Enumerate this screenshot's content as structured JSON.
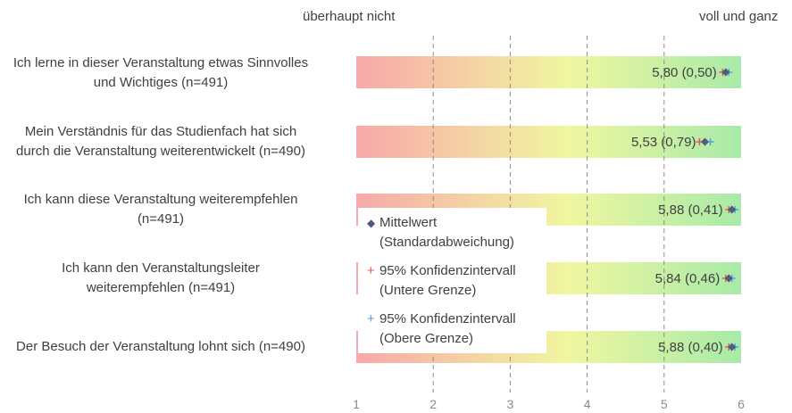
{
  "scale_labels": {
    "left": "überhaupt nicht",
    "right": "voll und ganz"
  },
  "legend": [
    {
      "marker": "diamond-marker",
      "line1": "Mittelwert",
      "line2": "(Standardabweichung)",
      "color": "#4f5b80"
    },
    {
      "marker": "plus-marker",
      "line1": "95% Konfidenzintervall",
      "line2": "(Untere Grenze)",
      "color": "#e05a5a"
    },
    {
      "marker": "plus-marker",
      "line1": "95% Konfidenzintervall",
      "line2": "(Obere Grenze)",
      "color": "#5a9fe0"
    }
  ],
  "chart_data": {
    "type": "scatter",
    "x_ticks": [
      "1",
      "2",
      "3",
      "4",
      "5",
      "6"
    ],
    "xlim": [
      1,
      6
    ],
    "grid": true,
    "items": [
      {
        "label_lines": [
          "Ich lerne in dieser Veranstaltung etwas Sinnvolles",
          "und Wichtiges (n=491)"
        ],
        "mean": 5.8,
        "sd": 0.5,
        "ci_lower": 5.76,
        "ci_upper": 5.84,
        "value_label": "5,80 (0,50)"
      },
      {
        "label_lines": [
          "Mein Verständnis für das Studienfach hat sich",
          "durch die Veranstaltung weiterentwickelt  (n=490)"
        ],
        "mean": 5.53,
        "sd": 0.79,
        "ci_lower": 5.46,
        "ci_upper": 5.6,
        "value_label": "5,53 (0,79)"
      },
      {
        "label_lines": [
          "Ich kann diese Veranstaltung weiterempfehlen",
          "(n=491)"
        ],
        "mean": 5.88,
        "sd": 0.41,
        "ci_lower": 5.84,
        "ci_upper": 5.92,
        "value_label": "5,88 (0,41)"
      },
      {
        "label_lines": [
          "Ich kann den Veranstaltungsleiter",
          "weiterempfehlen (n=491)"
        ],
        "mean": 5.84,
        "sd": 0.46,
        "ci_lower": 5.8,
        "ci_upper": 5.88,
        "value_label": "5,84 (0,46)"
      },
      {
        "label_lines": [
          "Der Besuch der Veranstaltung lohnt sich (n=490)"
        ],
        "mean": 5.88,
        "sd": 0.4,
        "ci_lower": 5.84,
        "ci_upper": 5.92,
        "value_label": "5,88 (0,40)"
      }
    ],
    "colors": {
      "mean": "#4f5b80",
      "ci_lower": "#e05a5a",
      "ci_upper": "#5a9fe0",
      "bar_low": "#f8a8a8",
      "bar_mid": "#f0f7a0",
      "bar_high": "#a8eaa8"
    }
  }
}
